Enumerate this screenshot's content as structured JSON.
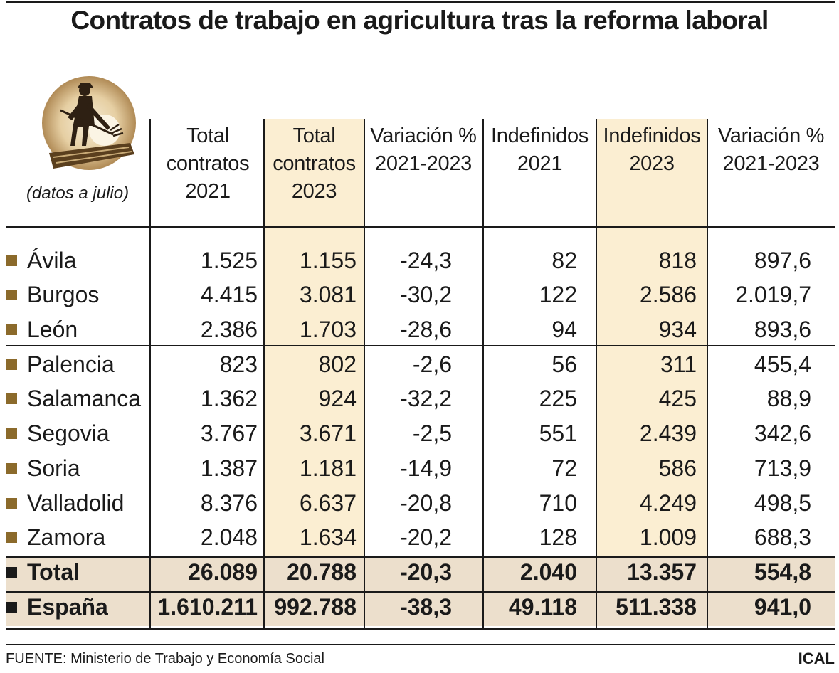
{
  "title": "Contratos de trabajo en agricultura tras la reforma laboral",
  "note": "(datos a julio)",
  "icon": "farmer-with-pitchfork-icon",
  "colors": {
    "highlight": "#fbeed2",
    "total_band": "#ecdfcc",
    "bullet": "#8b6a2b"
  },
  "chart_data": {
    "type": "table",
    "title": "Contratos de trabajo en agricultura tras la reforma laboral",
    "columns": [
      {
        "line1": "Total",
        "line2": "contratos",
        "line3": "2021"
      },
      {
        "line1": "Total",
        "line2": "contratos",
        "line3": "2023"
      },
      {
        "line1": "Variación %",
        "line2": "2021-2023",
        "line3": ""
      },
      {
        "line1": "Indefinidos",
        "line2": "2021",
        "line3": ""
      },
      {
        "line1": "Indefinidos",
        "line2": "2023",
        "line3": ""
      },
      {
        "line1": "Variación %",
        "line2": "2021-2023",
        "line3": ""
      }
    ],
    "rows": [
      {
        "name": "Ávila",
        "values": [
          "1.525",
          "1.155",
          "-24,3",
          "82",
          "818",
          "897,6"
        ]
      },
      {
        "name": "Burgos",
        "values": [
          "4.415",
          "3.081",
          "-30,2",
          "122",
          "2.586",
          "2.019,7"
        ]
      },
      {
        "name": "León",
        "values": [
          "2.386",
          "1.703",
          "-28,6",
          "94",
          "934",
          "893,6"
        ]
      },
      {
        "name": "Palencia",
        "values": [
          "823",
          "802",
          "-2,6",
          "56",
          "311",
          "455,4"
        ]
      },
      {
        "name": "Salamanca",
        "values": [
          "1.362",
          "924",
          "-32,2",
          "225",
          "425",
          "88,9"
        ]
      },
      {
        "name": "Segovia",
        "values": [
          "3.767",
          "3.671",
          "-2,5",
          "551",
          "2.439",
          "342,6"
        ]
      },
      {
        "name": "Soria",
        "values": [
          "1.387",
          "1.181",
          "-14,9",
          "72",
          "586",
          "713,9"
        ]
      },
      {
        "name": "Valladolid",
        "values": [
          "8.376",
          "6.637",
          "-20,8",
          "710",
          "4.249",
          "498,5"
        ]
      },
      {
        "name": "Zamora",
        "values": [
          "2.048",
          "1.634",
          "-20,2",
          "128",
          "1.009",
          "688,3"
        ]
      }
    ],
    "totals": [
      {
        "name": "Total",
        "values": [
          "26.089",
          "20.788",
          "-20,3",
          "2.040",
          "13.357",
          "554,8"
        ]
      },
      {
        "name": "España",
        "values": [
          "1.610.211",
          "992.788",
          "-38,3",
          "49.118",
          "511.338",
          "941,0"
        ]
      }
    ]
  },
  "footer": {
    "source": "FUENTE: Ministerio de Trabajo y Economía Social",
    "brand": "ICAL"
  }
}
